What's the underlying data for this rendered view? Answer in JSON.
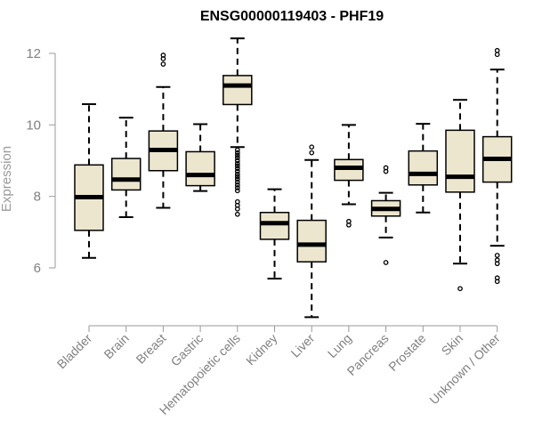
{
  "colors": {
    "box_fill": "#ede6cf",
    "axis": "#9a9a9a",
    "tick_text": "#808080"
  },
  "chart_data": {
    "type": "boxplot",
    "title": "ENSG00000119403 - PHF19",
    "xlabel": "",
    "ylabel": "Expression",
    "ylim": [
      4.4,
      12.6
    ],
    "yticks": [
      6,
      8,
      10,
      12
    ],
    "categories": [
      "Bladder",
      "Brain",
      "Breast",
      "Gastric",
      "Hematopoietic cells",
      "Kidney",
      "Liver",
      "Lung",
      "Pancreas",
      "Prostate",
      "Skin",
      "Unknown / Other"
    ],
    "series": [
      {
        "name": "Bladder",
        "whisker_low": 6.28,
        "q1": 7.05,
        "median": 7.98,
        "q3": 8.88,
        "whisker_high": 10.58,
        "outliers": []
      },
      {
        "name": "Brain",
        "whisker_low": 7.42,
        "q1": 8.18,
        "median": 8.47,
        "q3": 9.06,
        "whisker_high": 10.2,
        "outliers": []
      },
      {
        "name": "Breast",
        "whisker_low": 7.68,
        "q1": 8.72,
        "median": 9.3,
        "q3": 9.83,
        "whisker_high": 11.06,
        "outliers": [
          11.7,
          11.85,
          11.95
        ]
      },
      {
        "name": "Gastric",
        "whisker_low": 8.15,
        "q1": 8.3,
        "median": 8.6,
        "q3": 9.25,
        "whisker_high": 10.02,
        "outliers": []
      },
      {
        "name": "Hematopoietic cells",
        "whisker_low": 9.38,
        "q1": 10.57,
        "median": 11.1,
        "q3": 11.38,
        "whisker_high": 12.42,
        "outliers": [
          9.3,
          9.22,
          9.15,
          9.08,
          9.0,
          8.92,
          8.85,
          8.78,
          8.7,
          8.62,
          8.55,
          8.48,
          8.4,
          8.32,
          8.24,
          8.16,
          7.85,
          7.75,
          7.65,
          7.5
        ]
      },
      {
        "name": "Kidney",
        "whisker_low": 5.7,
        "q1": 6.8,
        "median": 7.25,
        "q3": 7.55,
        "whisker_high": 8.2,
        "outliers": []
      },
      {
        "name": "Liver",
        "whisker_low": 4.62,
        "q1": 6.17,
        "median": 6.65,
        "q3": 7.33,
        "whisker_high": 9.02,
        "outliers": [
          9.22,
          9.38
        ]
      },
      {
        "name": "Lung",
        "whisker_low": 7.78,
        "q1": 8.45,
        "median": 8.8,
        "q3": 9.03,
        "whisker_high": 10.0,
        "outliers": [
          7.2,
          7.3
        ]
      },
      {
        "name": "Pancreas",
        "whisker_low": 6.85,
        "q1": 7.45,
        "median": 7.65,
        "q3": 7.88,
        "whisker_high": 8.1,
        "outliers": [
          6.15,
          8.7,
          8.8
        ]
      },
      {
        "name": "Prostate",
        "whisker_low": 7.55,
        "q1": 8.32,
        "median": 8.63,
        "q3": 9.27,
        "whisker_high": 10.03,
        "outliers": []
      },
      {
        "name": "Skin",
        "whisker_low": 6.12,
        "q1": 8.12,
        "median": 8.55,
        "q3": 9.85,
        "whisker_high": 10.7,
        "outliers": [
          5.42
        ]
      },
      {
        "name": "Unknown / Other",
        "whisker_low": 6.62,
        "q1": 8.4,
        "median": 9.05,
        "q3": 9.67,
        "whisker_high": 11.55,
        "outliers": [
          5.62,
          5.72,
          6.12,
          6.22,
          6.35,
          11.97,
          12.08
        ]
      }
    ]
  }
}
